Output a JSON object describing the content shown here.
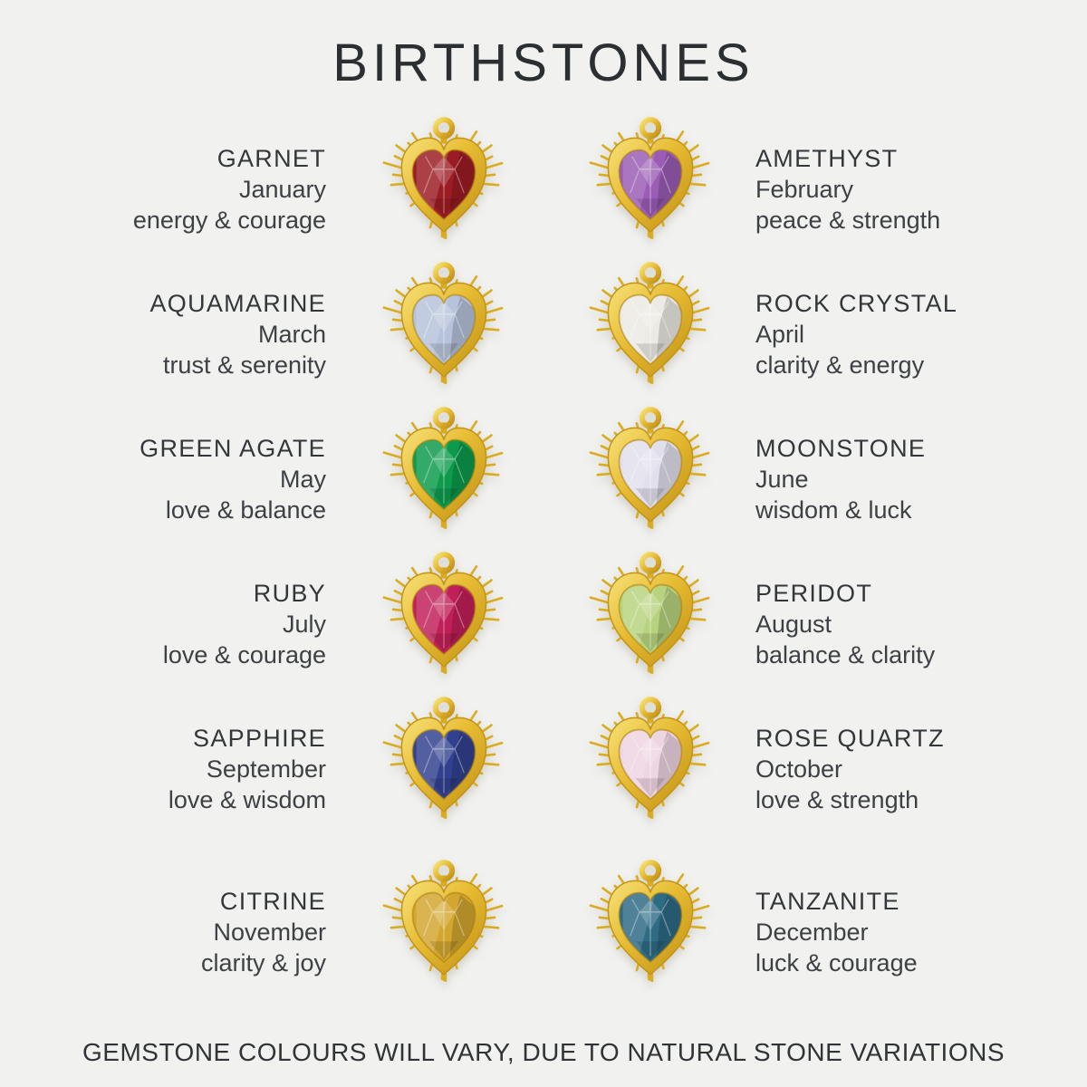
{
  "title": "BIRTHSTONES",
  "footer": {
    "note": "GEMSTONE COLOURS WILL VARY, DUE TO NATURAL STONE VARIATIONS"
  },
  "colors": {
    "background": "#f1f1ef",
    "text": "#33373a",
    "gold": "#e3b52c",
    "gold_dark": "#bf8f14",
    "gold_light": "#f7e27a"
  },
  "stones": [
    {
      "name": "GARNET",
      "month": "January",
      "traits": "energy & courage",
      "stone_color": "#9c1c24"
    },
    {
      "name": "AMETHYST",
      "month": "February",
      "traits": "peace & strength",
      "stone_color": "#9a5cb4"
    },
    {
      "name": "AQUAMARINE",
      "month": "March",
      "traits": "trust & serenity",
      "stone_color": "#b7c3da"
    },
    {
      "name": "ROCK CRYSTAL",
      "month": "April",
      "traits": "clarity & energy",
      "stone_color": "#eceae3"
    },
    {
      "name": "GREEN AGATE",
      "month": "May",
      "traits": "love & balance",
      "stone_color": "#0d9a4c"
    },
    {
      "name": "MOONSTONE",
      "month": "June",
      "traits": "wisdom & luck",
      "stone_color": "#e2dfec"
    },
    {
      "name": "RUBY",
      "month": "July",
      "traits": "love & courage",
      "stone_color": "#c02057"
    },
    {
      "name": "PERIDOT",
      "month": "August",
      "traits": "balance & clarity",
      "stone_color": "#b8d37e"
    },
    {
      "name": "SAPPHIRE",
      "month": "September",
      "traits": "love & wisdom",
      "stone_color": "#31418f"
    },
    {
      "name": "ROSE QUARTZ",
      "month": "October",
      "traits": "love & strength",
      "stone_color": "#eed5e2"
    },
    {
      "name": "CITRINE",
      "month": "November",
      "traits": "clarity & joy",
      "stone_color": "#d2a62f"
    },
    {
      "name": "TANZANITE",
      "month": "December",
      "traits": "luck & courage",
      "stone_color": "#2e6b85"
    }
  ]
}
